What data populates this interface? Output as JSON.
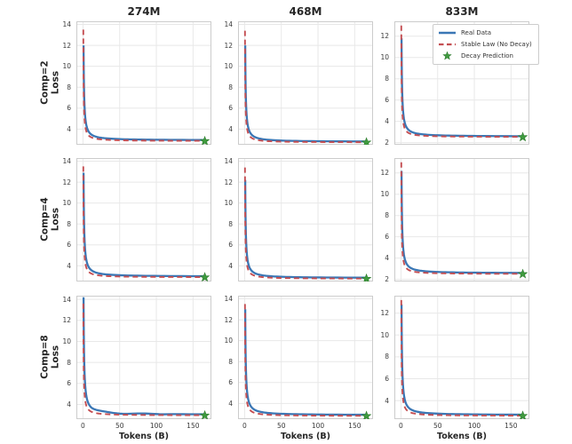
{
  "figure": {
    "columns": [
      "274M",
      "468M",
      "833M"
    ],
    "rows": [
      {
        "comp": "Comp=2",
        "loss": "Loss"
      },
      {
        "comp": "Comp=4",
        "loss": "Loss"
      },
      {
        "comp": "Comp=8",
        "loss": "Loss"
      }
    ],
    "xlabel": "Tokens (B)",
    "legend": {
      "items": [
        {
          "label": "Real Data",
          "symbol": "line",
          "color": "#3a77b5"
        },
        {
          "label": "Stable Law (No Decay)",
          "symbol": "dashed-line",
          "color": "#c44e52"
        },
        {
          "label": "Decay Prediction",
          "symbol": "star",
          "color": "#3f9b3f"
        }
      ]
    }
  },
  "colors": {
    "real_data": "#3a77b5",
    "stable_law": "#c44e52",
    "decay_prediction": "#3f9b3f",
    "star_edge": "#2d7a2d",
    "grid": "#e8e8e8",
    "spine": "#cccccc",
    "tick_text": "#3b3b3b"
  },
  "chart_data": [
    {
      "type": "line",
      "title": "274M",
      "row": "Comp=2",
      "ylabel": "Comp=2 Loss",
      "xlim": [
        -9,
        175
      ],
      "ylim": [
        2.5,
        14.3
      ],
      "xticks": [
        0,
        50,
        100,
        150
      ],
      "yticks": [
        4,
        6,
        8,
        10,
        12,
        14
      ],
      "series": [
        {
          "name": "Real Data",
          "style": "solid",
          "color": "#3a77b5",
          "start_x": 0.8,
          "start_y": 12.0,
          "plateau": 2.92,
          "noise": 0
        },
        {
          "name": "Stable Law (No Decay)",
          "style": "dashed",
          "color": "#c44e52",
          "start_x": 0.45,
          "start_y": 13.5,
          "plateau": 2.85,
          "noise": 0
        }
      ],
      "decay_prediction": {
        "x": 166,
        "y": 2.85
      }
    },
    {
      "type": "line",
      "title": "468M",
      "row": "Comp=2",
      "ylabel": "Loss",
      "xlim": [
        -9,
        175
      ],
      "ylim": [
        2.5,
        14.3
      ],
      "xticks": [
        0,
        50,
        100,
        150
      ],
      "yticks": [
        4,
        6,
        8,
        10,
        12,
        14
      ],
      "series": [
        {
          "name": "Real Data",
          "style": "solid",
          "color": "#3a77b5",
          "start_x": 0.8,
          "start_y": 12.0,
          "plateau": 2.78,
          "noise": 0
        },
        {
          "name": "Stable Law (No Decay)",
          "style": "dashed",
          "color": "#c44e52",
          "start_x": 0.45,
          "start_y": 13.4,
          "plateau": 2.72,
          "noise": 0
        }
      ],
      "decay_prediction": {
        "x": 166,
        "y": 2.72
      }
    },
    {
      "type": "line",
      "title": "833M",
      "row": "Comp=2",
      "ylabel": "Loss",
      "has_legend": true,
      "xlim": [
        -9,
        175
      ],
      "ylim": [
        1.8,
        13.4
      ],
      "xticks": [
        0,
        50,
        100,
        150
      ],
      "yticks": [
        2,
        4,
        6,
        8,
        10,
        12
      ],
      "series": [
        {
          "name": "Real Data",
          "style": "solid",
          "color": "#3a77b5",
          "start_x": 0.8,
          "start_y": 11.8,
          "plateau": 2.57,
          "noise": 0
        },
        {
          "name": "Stable Law (No Decay)",
          "style": "dashed",
          "color": "#c44e52",
          "start_x": 0.45,
          "start_y": 13.0,
          "plateau": 2.52,
          "noise": 0
        }
      ],
      "decay_prediction": {
        "x": 166,
        "y": 2.52
      }
    },
    {
      "type": "line",
      "title": "274M",
      "row": "Comp=4",
      "ylabel": "Comp=4 Loss",
      "xlim": [
        -9,
        175
      ],
      "ylim": [
        2.5,
        14.3
      ],
      "xticks": [
        0,
        50,
        100,
        150
      ],
      "yticks": [
        4,
        6,
        8,
        10,
        12,
        14
      ],
      "series": [
        {
          "name": "Real Data",
          "style": "solid",
          "color": "#3a77b5",
          "start_x": 0.8,
          "start_y": 12.9,
          "plateau": 2.97,
          "noise": 0
        },
        {
          "name": "Stable Law (No Decay)",
          "style": "dashed",
          "color": "#c44e52",
          "start_x": 0.45,
          "start_y": 13.5,
          "plateau": 2.9,
          "noise": 0
        }
      ],
      "decay_prediction": {
        "x": 166,
        "y": 2.9
      }
    },
    {
      "type": "line",
      "title": "468M",
      "row": "Comp=4",
      "ylabel": "Loss",
      "xlim": [
        -9,
        175
      ],
      "ylim": [
        2.5,
        14.3
      ],
      "xticks": [
        0,
        50,
        100,
        150
      ],
      "yticks": [
        4,
        6,
        8,
        10,
        12,
        14
      ],
      "series": [
        {
          "name": "Real Data",
          "style": "solid",
          "color": "#3a77b5",
          "start_x": 0.8,
          "start_y": 12.2,
          "plateau": 2.83,
          "noise": 0
        },
        {
          "name": "Stable Law (No Decay)",
          "style": "dashed",
          "color": "#c44e52",
          "start_x": 0.45,
          "start_y": 13.4,
          "plateau": 2.76,
          "noise": 0
        }
      ],
      "decay_prediction": {
        "x": 166,
        "y": 2.76
      }
    },
    {
      "type": "line",
      "title": "833M",
      "row": "Comp=4",
      "ylabel": "Loss",
      "xlim": [
        -9,
        175
      ],
      "ylim": [
        1.8,
        13.4
      ],
      "xticks": [
        0,
        50,
        100,
        150
      ],
      "yticks": [
        2,
        4,
        6,
        8,
        10,
        12
      ],
      "series": [
        {
          "name": "Real Data",
          "style": "solid",
          "color": "#3a77b5",
          "start_x": 0.8,
          "start_y": 12.2,
          "plateau": 2.57,
          "noise": 0
        },
        {
          "name": "Stable Law (No Decay)",
          "style": "dashed",
          "color": "#c44e52",
          "start_x": 0.45,
          "start_y": 13.0,
          "plateau": 2.5,
          "noise": 0
        }
      ],
      "decay_prediction": {
        "x": 166,
        "y": 2.5
      }
    },
    {
      "type": "line",
      "title": "274M",
      "row": "Comp=8",
      "ylabel": "Comp=8 Loss",
      "xlim": [
        -9,
        175
      ],
      "ylim": [
        2.6,
        14.35
      ],
      "xticks": [
        0,
        50,
        100,
        150
      ],
      "yticks": [
        4,
        6,
        8,
        10,
        12,
        14
      ],
      "series": [
        {
          "name": "Real Data",
          "style": "solid",
          "color": "#3a77b5",
          "start_x": 0.8,
          "start_y": 14.2,
          "plateau": 3.02,
          "noise": 0.07
        },
        {
          "name": "Stable Law (No Decay)",
          "style": "dashed",
          "color": "#c44e52",
          "start_x": 0.45,
          "start_y": 13.6,
          "plateau": 2.95,
          "noise": 0
        }
      ],
      "decay_prediction": {
        "x": 166,
        "y": 2.95
      }
    },
    {
      "type": "line",
      "title": "468M",
      "row": "Comp=8",
      "ylabel": "Loss",
      "xlim": [
        -9,
        175
      ],
      "ylim": [
        2.5,
        14.3
      ],
      "xticks": [
        0,
        50,
        100,
        150
      ],
      "yticks": [
        4,
        6,
        8,
        10,
        12,
        14
      ],
      "series": [
        {
          "name": "Real Data",
          "style": "solid",
          "color": "#3a77b5",
          "start_x": 0.8,
          "start_y": 13.0,
          "plateau": 2.88,
          "noise": 0
        },
        {
          "name": "Stable Law (No Decay)",
          "style": "dashed",
          "color": "#c44e52",
          "start_x": 0.45,
          "start_y": 13.5,
          "plateau": 2.8,
          "noise": 0
        }
      ],
      "decay_prediction": {
        "x": 166,
        "y": 2.8
      }
    },
    {
      "type": "line",
      "title": "833M",
      "row": "Comp=8",
      "ylabel": "Loss",
      "xlim": [
        -9,
        175
      ],
      "ylim": [
        2.3,
        13.6
      ],
      "xticks": [
        0,
        50,
        100,
        150
      ],
      "yticks": [
        4,
        6,
        8,
        10,
        12
      ],
      "series": [
        {
          "name": "Real Data",
          "style": "solid",
          "color": "#3a77b5",
          "start_x": 0.8,
          "start_y": 12.8,
          "plateau": 2.67,
          "noise": 0
        },
        {
          "name": "Stable Law (No Decay)",
          "style": "dashed",
          "color": "#c44e52",
          "start_x": 0.45,
          "start_y": 13.2,
          "plateau": 2.6,
          "noise": 0
        }
      ],
      "decay_prediction": {
        "x": 166,
        "y": 2.6
      }
    }
  ]
}
